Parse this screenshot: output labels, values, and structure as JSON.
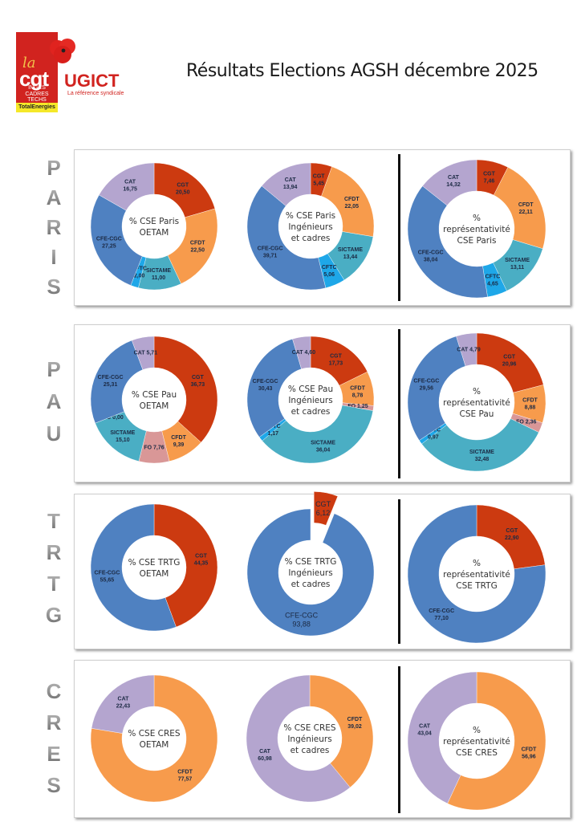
{
  "header": {
    "title": "Résultats Elections AGSH décembre 2025",
    "logo": {
      "la": "la",
      "cgt": "cgt",
      "ugict": "UGICT",
      "tagline": "La référence syndicale",
      "sub_lines": [
        "INGÉS",
        "CADRES",
        "TECHS"
      ],
      "company": "TotalEnergies",
      "icon": "poppy-flower-icon"
    }
  },
  "colors": {
    "CGT": "#cc3a10",
    "CFDT": "#f79b4c",
    "SICTAME": "#4aaec4",
    "CFTC": "#1ea7e8",
    "CFE-CGC": "#4f81c1",
    "CAT": "#b4a5cf",
    "FO": "#d99797"
  },
  "sections": [
    {
      "name": "PARIS",
      "letters": [
        "P",
        "A",
        "R",
        "I",
        "S"
      ]
    },
    {
      "name": "PAU",
      "letters": [
        "P",
        "A",
        "U"
      ]
    },
    {
      "name": "TRTG",
      "letters": [
        "T",
        "R",
        "T",
        "G"
      ]
    },
    {
      "name": "CRES",
      "letters": [
        "C",
        "R",
        "E",
        "S"
      ]
    }
  ],
  "chart_data": [
    {
      "type": "pie",
      "section": "PARIS",
      "title": "% CSE Paris OETAM",
      "title_lines": [
        "% CSE Paris",
        "OETAM"
      ],
      "slices": [
        {
          "label": "CGT",
          "value": 20.5,
          "display": "20,50"
        },
        {
          "label": "CFDT",
          "value": 22.5,
          "display": "22,50"
        },
        {
          "label": "SICTAME",
          "value": 11.0,
          "display": "11,00"
        },
        {
          "label": "CFTC",
          "value": 2.0,
          "display": "2,00"
        },
        {
          "label": "CFE-CGC",
          "value": 27.25,
          "display": "27,25"
        },
        {
          "label": "CAT",
          "value": 16.75,
          "display": "16,75"
        }
      ]
    },
    {
      "type": "pie",
      "section": "PARIS",
      "title": "% CSE Paris Ingénieurs et cadres",
      "title_lines": [
        "% CSE Paris",
        "Ingénieurs",
        "et cadres"
      ],
      "slices": [
        {
          "label": "CGT",
          "value": 5.45,
          "display": "5,45"
        },
        {
          "label": "CFDT",
          "value": 22.05,
          "display": "22,05"
        },
        {
          "label": "SICTAME",
          "value": 13.44,
          "display": "13,44"
        },
        {
          "label": "CFTC",
          "value": 5.06,
          "display": "5,06"
        },
        {
          "label": "CFE-CGC",
          "value": 39.71,
          "display": "39,71"
        },
        {
          "label": "CAT",
          "value": 13.94,
          "display": "13,94"
        }
      ]
    },
    {
      "type": "pie",
      "section": "PARIS",
      "title": "% représentativité CSE Paris",
      "title_lines": [
        "%",
        "représentativité",
        "CSE Paris"
      ],
      "slices": [
        {
          "label": "CGT",
          "value": 7.46,
          "display": "7,46"
        },
        {
          "label": "CFDT",
          "value": 22.11,
          "display": "22,11"
        },
        {
          "label": "SICTAME",
          "value": 13.11,
          "display": "13,11"
        },
        {
          "label": "CFTC",
          "value": 4.65,
          "display": "4,65"
        },
        {
          "label": "CFE-CGC",
          "value": 38.04,
          "display": "38,04"
        },
        {
          "label": "CAT",
          "value": 14.32,
          "display": "14,32"
        }
      ]
    },
    {
      "type": "pie",
      "section": "PAU",
      "title": "% CSE Pau OETAM",
      "title_lines": [
        "% CSE Pau",
        "OETAM"
      ],
      "slices": [
        {
          "label": "CGT",
          "value": 36.73,
          "display": "36,73"
        },
        {
          "label": "CFDT",
          "value": 9.39,
          "display": "9,39"
        },
        {
          "label": "FO",
          "value": 7.76,
          "display": "7,76",
          "inline": true
        },
        {
          "label": "SICTAME",
          "value": 15.1,
          "display": "15,10"
        },
        {
          "label": "CFTC",
          "value": 0.0,
          "display": "0,00",
          "inline": true
        },
        {
          "label": "CFE-CGC",
          "value": 25.31,
          "display": "25,31"
        },
        {
          "label": "CAT",
          "value": 5.71,
          "display": "5,71",
          "inline": true
        }
      ]
    },
    {
      "type": "pie",
      "section": "PAU",
      "title": "% CSE Pau Ingénieurs et cadres",
      "title_lines": [
        "% CSE Pau",
        "Ingénieurs",
        "et cadres"
      ],
      "slices": [
        {
          "label": "CGT",
          "value": 17.73,
          "display": "17,73"
        },
        {
          "label": "CFDT",
          "value": 8.78,
          "display": "8,78"
        },
        {
          "label": "FO",
          "value": 1.25,
          "display": "1,25",
          "inline": true
        },
        {
          "label": "SICTAME",
          "value": 36.04,
          "display": "36,04"
        },
        {
          "label": "CFTC",
          "value": 1.17,
          "display": "1,17"
        },
        {
          "label": "CFE-CGC",
          "value": 30.43,
          "display": "30,43"
        },
        {
          "label": "CAT",
          "value": 4.6,
          "display": "4,60",
          "inline": true
        }
      ]
    },
    {
      "type": "pie",
      "section": "PAU",
      "title": "% représentativité CSE Pau",
      "title_lines": [
        "%",
        "représentativité",
        "CSE Pau"
      ],
      "slices": [
        {
          "label": "CGT",
          "value": 20.96,
          "display": "20,96"
        },
        {
          "label": "CFDT",
          "value": 8.88,
          "display": "8,88"
        },
        {
          "label": "FO",
          "value": 2.36,
          "display": "2,36",
          "inline": true
        },
        {
          "label": "SICTAME",
          "value": 32.48,
          "display": "32,48"
        },
        {
          "label": "CFTC",
          "value": 0.97,
          "display": "0,97"
        },
        {
          "label": "CFE-CGC",
          "value": 29.56,
          "display": "29,56"
        },
        {
          "label": "CAT",
          "value": 4.79,
          "display": "4,79",
          "inline": true
        }
      ]
    },
    {
      "type": "pie",
      "section": "TRTG",
      "title": "% CSE TRTG OETAM",
      "title_lines": [
        "% CSE TRTG",
        "OETAM"
      ],
      "slices": [
        {
          "label": "CGT",
          "value": 44.35,
          "display": "44,35"
        },
        {
          "label": "CFE-CGC",
          "value": 55.65,
          "display": "55,65"
        }
      ]
    },
    {
      "type": "pie",
      "section": "TRTG",
      "title": "% CSE TRTG Ingénieurs et cadres",
      "title_lines": [
        "% CSE TRTG",
        "Ingénieurs",
        "et cadres"
      ],
      "exploded": "CGT",
      "slices": [
        {
          "label": "CGT",
          "value": 6.12,
          "display": "6,12"
        },
        {
          "label": "CFE-CGC",
          "value": 93.88,
          "display": "93,88"
        }
      ]
    },
    {
      "type": "pie",
      "section": "TRTG",
      "title": "% représentativité CSE TRTG",
      "title_lines": [
        "%",
        "représentativité",
        "CSE TRTG"
      ],
      "slices": [
        {
          "label": "CGT",
          "value": 22.9,
          "display": "22,90"
        },
        {
          "label": "CFE-CGC",
          "value": 77.1,
          "display": "77,10"
        }
      ]
    },
    {
      "type": "pie",
      "section": "CRES",
      "title": "% CSE CRES OETAM",
      "title_lines": [
        "% CSE CRES",
        "OETAM"
      ],
      "slices": [
        {
          "label": "CFDT",
          "value": 77.57,
          "display": "77,57"
        },
        {
          "label": "CAT",
          "value": 22.43,
          "display": "22,43"
        }
      ]
    },
    {
      "type": "pie",
      "section": "CRES",
      "title": "% CSE CRES Ingénieurs et cadres",
      "title_lines": [
        "% CSE CRES",
        "Ingénieurs",
        "et cadres"
      ],
      "slices": [
        {
          "label": "CFDT",
          "value": 39.02,
          "display": "39,02"
        },
        {
          "label": "CAT",
          "value": 60.98,
          "display": "60,98"
        }
      ]
    },
    {
      "type": "pie",
      "section": "CRES",
      "title": "% représentativité CSE CRES",
      "title_lines": [
        "%",
        "représentativité",
        "CSE CRES"
      ],
      "slices": [
        {
          "label": "CFDT",
          "value": 56.96,
          "display": "56,96"
        },
        {
          "label": "CAT",
          "value": 43.04,
          "display": "43,04"
        }
      ]
    }
  ]
}
